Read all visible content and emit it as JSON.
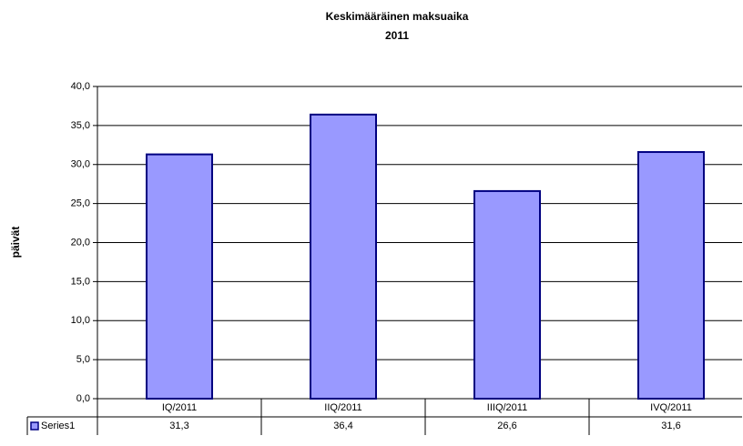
{
  "chart_data": {
    "type": "bar",
    "title": "Keskimääräinen maksuaika",
    "subtitle": "2011",
    "y_label": "päivät",
    "categories": [
      "IQ/2011",
      "IIQ/2011",
      "IIIQ/2011",
      "IVQ/2011"
    ],
    "series": [
      {
        "name": "Series1",
        "color": "#9999ff",
        "values": [
          31.3,
          36.4,
          26.6,
          31.6
        ],
        "value_labels": [
          "31,3",
          "36,4",
          "26,6",
          "31,6"
        ]
      }
    ],
    "ylim": [
      0,
      40
    ],
    "yticks": [
      {
        "value": 0,
        "label": "0,0"
      },
      {
        "value": 5,
        "label": "5,0"
      },
      {
        "value": 10,
        "label": "10,0"
      },
      {
        "value": 15,
        "label": "15,0"
      },
      {
        "value": 20,
        "label": "20,0"
      },
      {
        "value": 25,
        "label": "25,0"
      },
      {
        "value": 30,
        "label": "30,0"
      },
      {
        "value": 35,
        "label": "35,0"
      },
      {
        "value": 40,
        "label": "40,0"
      }
    ],
    "grid": true,
    "data_table": true
  }
}
